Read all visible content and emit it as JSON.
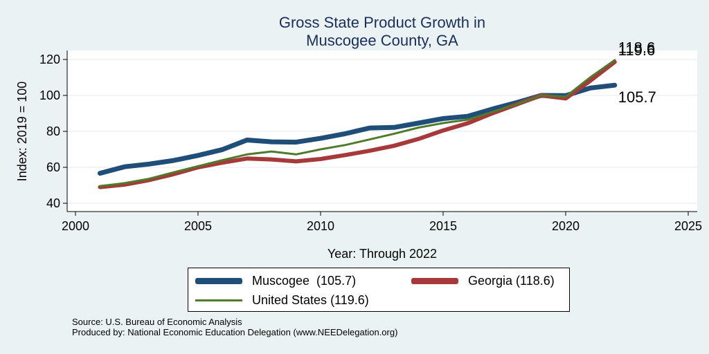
{
  "chart_data": {
    "type": "line",
    "title": [
      "Gross State Product Growth in",
      "Muscogee County, GA"
    ],
    "xlabel": "Year: Through 2022",
    "ylabel": "Index: 2019 = 100",
    "xlim": [
      2000,
      2025
    ],
    "ylim": [
      40,
      120
    ],
    "xticks": [
      2000,
      2005,
      2010,
      2015,
      2020,
      2025
    ],
    "yticks": [
      40,
      60,
      80,
      100,
      120
    ],
    "grid": true,
    "legend_position": "bottom",
    "series": [
      {
        "name": "Muscogee  (105.7)",
        "color": "#1f4e79",
        "x": [
          2001,
          2002,
          2003,
          2004,
          2005,
          2006,
          2007,
          2008,
          2009,
          2010,
          2011,
          2012,
          2013,
          2014,
          2015,
          2016,
          2017,
          2018,
          2019,
          2020,
          2021,
          2022
        ],
        "values": [
          56.7,
          60.3,
          61.8,
          63.8,
          66.6,
          69.9,
          75.2,
          74.2,
          74.0,
          76.1,
          78.7,
          81.9,
          82.2,
          84.6,
          87.1,
          88.4,
          92.4,
          96.0,
          100.0,
          99.9,
          104.1,
          105.7
        ],
        "end_label": "105.7"
      },
      {
        "name": "Georgia (118.6)",
        "color": "#a63a3a",
        "x": [
          2001,
          2002,
          2003,
          2004,
          2005,
          2006,
          2007,
          2008,
          2009,
          2010,
          2011,
          2012,
          2013,
          2014,
          2015,
          2016,
          2017,
          2018,
          2019,
          2020,
          2021,
          2022
        ],
        "values": [
          49.0,
          50.4,
          52.9,
          56.2,
          60.0,
          62.6,
          64.9,
          64.4,
          63.3,
          64.6,
          66.8,
          69.2,
          72.0,
          75.8,
          80.5,
          84.5,
          90.0,
          95.0,
          100.0,
          98.3,
          108.1,
          118.6
        ],
        "end_label": "118.6"
      },
      {
        "name": "United States (119.6)",
        "color": "#4f7a2a",
        "x": [
          2001,
          2002,
          2003,
          2004,
          2005,
          2006,
          2007,
          2008,
          2009,
          2010,
          2011,
          2012,
          2013,
          2014,
          2015,
          2016,
          2017,
          2018,
          2019,
          2020,
          2021,
          2022
        ],
        "values": [
          49.5,
          51.2,
          53.6,
          57.2,
          60.6,
          64.0,
          67.2,
          68.8,
          67.2,
          70.0,
          72.4,
          75.5,
          78.7,
          82.1,
          84.6,
          86.5,
          90.8,
          95.1,
          100.0,
          99.3,
          110.0,
          119.6
        ],
        "end_label": "119.6"
      }
    ]
  },
  "footer": {
    "source": "Source: U.S. Bureau of Economic Analysis",
    "produced": "Produced by: National Economic Education Delegation (www.NEEDelegation.org)"
  }
}
